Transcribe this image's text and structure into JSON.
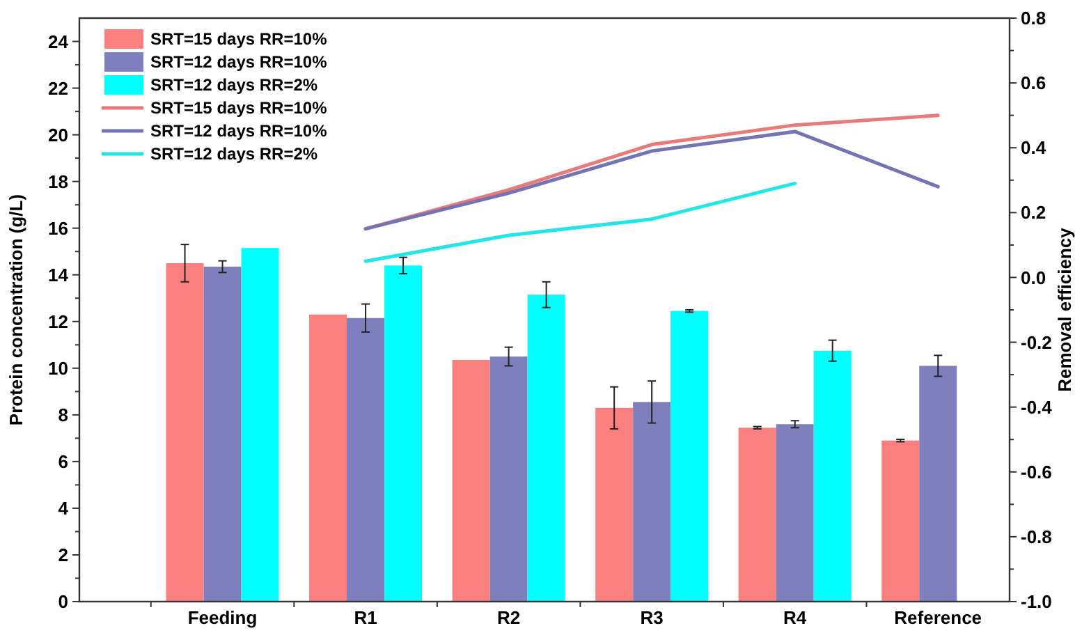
{
  "chart_data": {
    "type": "bar",
    "categories": [
      "Feeding",
      "R1",
      "R2",
      "R3",
      "R4",
      "Reference"
    ],
    "ylabel": "Protein concentration (g/L)",
    "y2label": "Removal efficiency",
    "ylim": [
      0,
      25
    ],
    "yticks": [
      0,
      2,
      4,
      6,
      8,
      10,
      12,
      14,
      16,
      18,
      20,
      22,
      24
    ],
    "y2lim": [
      -1,
      0.8
    ],
    "y2ticks": [
      {
        "value": -1,
        "label": "-1.0"
      },
      {
        "value": -0.8,
        "label": "-0.8"
      },
      {
        "value": -0.6,
        "label": "-0.6"
      },
      {
        "value": -0.4,
        "label": "-0.4"
      },
      {
        "value": -0.2,
        "label": "-0.2"
      },
      {
        "value": 0,
        "label": "0.0"
      },
      {
        "value": 0.2,
        "label": "0.2"
      },
      {
        "value": 0.4,
        "label": "0.4"
      },
      {
        "value": 0.6,
        "label": "0.6"
      },
      {
        "value": 0.8,
        "label": "0.8"
      }
    ],
    "grid": false,
    "legend": "top left",
    "series": [
      {
        "name": "SRT=15 days RR=10%",
        "color": "#fa7f7f",
        "values": [
          14.5,
          12.3,
          10.35,
          8.3,
          7.45,
          6.9
        ],
        "errors": [
          0.8,
          null,
          null,
          0.9,
          0.05,
          0.05
        ]
      },
      {
        "name": "SRT=12 days RR=10%",
        "color": "#7f7fbd",
        "values": [
          14.35,
          12.15,
          10.5,
          8.55,
          7.6,
          10.1
        ],
        "errors": [
          0.25,
          0.6,
          0.4,
          0.9,
          0.15,
          0.45
        ]
      },
      {
        "name": "SRT=12 days RR=2%",
        "color": "#00ffff",
        "values": [
          15.15,
          14.4,
          13.15,
          12.45,
          10.75,
          null
        ],
        "errors": [
          null,
          0.35,
          0.55,
          0.05,
          0.45,
          null
        ]
      },
      {
        "name": "SRT=15 days RR=10%",
        "type": "line",
        "axis": "y2",
        "color": "#e87a7a",
        "values": [
          null,
          0.15,
          0.27,
          0.41,
          0.47,
          0.5
        ]
      },
      {
        "name": "SRT=12 days RR=10%",
        "type": "line",
        "axis": "y2",
        "color": "#7474b4",
        "values": [
          null,
          0.15,
          0.26,
          0.39,
          0.45,
          0.28
        ]
      },
      {
        "name": "SRT=12 days RR=2%",
        "type": "line",
        "axis": "y2",
        "color": "#22e6e6",
        "values": [
          null,
          0.05,
          0.13,
          0.18,
          0.29,
          null
        ]
      }
    ]
  }
}
